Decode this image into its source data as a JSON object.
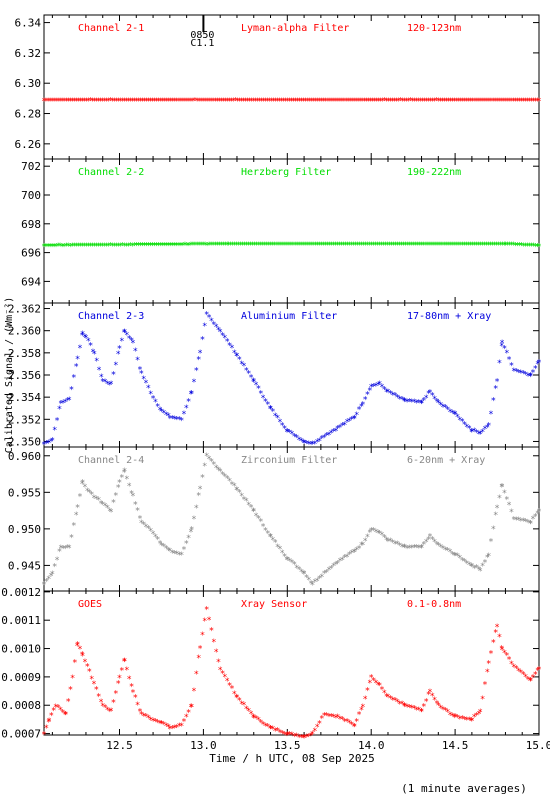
{
  "colors": {
    "red": "#ff0000",
    "green": "#00dd00",
    "blue": "#0000dd",
    "gray": "#888888",
    "axis": "#000000"
  },
  "figure": {
    "ylabel": "Calibrated Signal / (Wm⁻²)",
    "xlabel": "Time / h UTC, 08 Sep 2025",
    "footnote": "(1 minute averages)",
    "event_marker": {
      "time": 13.0,
      "label_top": "0850",
      "label_bottom": "C1.1"
    }
  },
  "chart_data": [
    {
      "type": "scatter",
      "channel": "Channel 2-1",
      "filter": "Lyman-alpha Filter",
      "band": "120-123nm",
      "color": "red",
      "xlim": [
        12.05,
        15.0
      ],
      "ylim": [
        6.25,
        6.345
      ],
      "yticks": [
        "6.26",
        "6.28",
        "6.30",
        "6.32",
        "6.34"
      ],
      "ytick_values": [
        6.26,
        6.28,
        6.3,
        6.32,
        6.34
      ],
      "series": [
        {
          "x": [
            12.05,
            15.0
          ],
          "y": [
            6.289,
            6.289
          ]
        }
      ]
    },
    {
      "type": "scatter",
      "channel": "Channel 2-2",
      "filter": "Herzberg Filter",
      "band": "190-222nm",
      "color": "green",
      "xlim": [
        12.05,
        15.0
      ],
      "ylim": [
        692.5,
        702.5
      ],
      "yticks": [
        "694",
        "696",
        "698",
        "700",
        "702"
      ],
      "ytick_values": [
        694,
        696,
        698,
        700,
        702
      ],
      "series": [
        {
          "x": [
            12.05,
            13.15,
            14.8,
            15.0
          ],
          "y": [
            696.5,
            696.6,
            696.6,
            696.5
          ]
        }
      ]
    },
    {
      "type": "scatter",
      "channel": "Channel 2-3",
      "filter": "Aluminium Filter",
      "band": "17-80nm + Xray",
      "color": "blue",
      "xlim": [
        12.05,
        15.0
      ],
      "ylim": [
        2.3495,
        2.3625
      ],
      "yticks": [
        "2.350",
        "2.352",
        "2.354",
        "2.356",
        "2.358",
        "2.360",
        "2.362"
      ],
      "ytick_values": [
        2.35,
        2.352,
        2.354,
        2.356,
        2.358,
        2.36,
        2.362
      ],
      "series": [
        {
          "x": [
            12.05,
            12.1,
            12.15,
            12.2,
            12.25,
            12.28,
            12.3,
            12.35,
            12.4,
            12.45,
            12.5,
            12.53,
            12.58,
            12.63,
            12.7,
            12.75,
            12.8,
            12.87,
            12.93,
            12.98,
            13.02,
            13.1,
            13.2,
            13.3,
            13.4,
            13.5,
            13.6,
            13.65,
            13.72,
            13.8,
            13.9,
            13.95,
            14.0,
            14.05,
            14.1,
            14.2,
            14.3,
            14.35,
            14.4,
            14.5,
            14.6,
            14.65,
            14.7,
            14.75,
            14.78,
            14.85,
            14.95,
            15.0
          ],
          "y": [
            2.3498,
            2.3502,
            2.3535,
            2.3538,
            2.3575,
            2.3598,
            2.3595,
            2.358,
            2.3555,
            2.3552,
            2.3585,
            2.36,
            2.359,
            2.3562,
            2.354,
            2.3528,
            2.3522,
            2.352,
            2.3545,
            2.358,
            2.3615,
            2.36,
            2.3578,
            2.3555,
            2.353,
            2.351,
            2.35,
            2.3498,
            2.3505,
            2.3512,
            2.3522,
            2.3535,
            2.355,
            2.3552,
            2.3545,
            2.3537,
            2.3535,
            2.3545,
            2.3535,
            2.3525,
            2.351,
            2.3508,
            2.3515,
            2.3555,
            2.359,
            2.3565,
            2.356,
            2.3572
          ]
        }
      ]
    },
    {
      "type": "scatter",
      "channel": "Channel 2-4",
      "filter": "Zirconium Filter",
      "band": "6-20nm + Xray",
      "color": "gray",
      "xlim": [
        12.05,
        15.0
      ],
      "ylim": [
        0.9415,
        0.9612
      ],
      "yticks": [
        "0.945",
        "0.950",
        "0.955",
        "0.960"
      ],
      "ytick_values": [
        0.945,
        0.95,
        0.955,
        0.96
      ],
      "series": [
        {
          "x": [
            12.05,
            12.1,
            12.15,
            12.2,
            12.25,
            12.28,
            12.32,
            12.4,
            12.45,
            12.5,
            12.53,
            12.58,
            12.63,
            12.7,
            12.75,
            12.8,
            12.87,
            12.93,
            12.98,
            13.02,
            13.1,
            13.2,
            13.3,
            13.4,
            13.5,
            13.6,
            13.65,
            13.72,
            13.8,
            13.9,
            13.95,
            14.0,
            14.05,
            14.1,
            14.2,
            14.3,
            14.35,
            14.4,
            14.5,
            14.6,
            14.65,
            14.7,
            14.75,
            14.78,
            14.85,
            14.95,
            15.0
          ],
          "y": [
            0.9425,
            0.944,
            0.9475,
            0.9475,
            0.953,
            0.9565,
            0.955,
            0.9535,
            0.9525,
            0.9565,
            0.958,
            0.9545,
            0.951,
            0.9495,
            0.948,
            0.947,
            0.9465,
            0.95,
            0.9555,
            0.96,
            0.958,
            0.9555,
            0.9525,
            0.949,
            0.946,
            0.944,
            0.9425,
            0.944,
            0.9455,
            0.947,
            0.948,
            0.95,
            0.9495,
            0.9485,
            0.9475,
            0.9475,
            0.949,
            0.9478,
            0.9465,
            0.945,
            0.9445,
            0.9465,
            0.953,
            0.956,
            0.9515,
            0.951,
            0.9525
          ]
        }
      ]
    },
    {
      "type": "scatter",
      "channel": "GOES",
      "filter": "Xray Sensor",
      "band": "0.1-0.8nm",
      "color": "red",
      "xlim": [
        12.05,
        15.0
      ],
      "ylim": [
        0.000695,
        0.001203
      ],
      "yticks": [
        "0.0007",
        "0.0008",
        "0.0009",
        "0.0010",
        "0.0011",
        "0.0012"
      ],
      "ytick_values": [
        0.0007,
        0.0008,
        0.0009,
        0.001,
        0.0011,
        0.0012
      ],
      "series": [
        {
          "x": [
            12.05,
            12.08,
            12.12,
            12.18,
            12.22,
            12.25,
            12.28,
            12.32,
            12.4,
            12.45,
            12.5,
            12.53,
            12.58,
            12.63,
            12.7,
            12.75,
            12.8,
            12.87,
            12.93,
            12.98,
            13.02,
            13.1,
            13.2,
            13.3,
            13.4,
            13.5,
            13.6,
            13.65,
            13.72,
            13.8,
            13.9,
            13.95,
            14.0,
            14.05,
            14.1,
            14.2,
            14.3,
            14.35,
            14.4,
            14.5,
            14.6,
            14.65,
            14.7,
            14.75,
            14.78,
            14.85,
            14.95,
            15.0
          ],
          "y": [
            0.0007,
            0.00075,
            0.0008,
            0.00077,
            0.0009,
            0.00102,
            0.00098,
            0.00092,
            0.0008,
            0.00078,
            0.0009,
            0.00096,
            0.00085,
            0.00077,
            0.00075,
            0.00074,
            0.00072,
            0.00073,
            0.0008,
            0.001,
            0.00114,
            0.00093,
            0.00083,
            0.00076,
            0.00072,
            0.0007,
            0.00069,
            0.0007,
            0.00077,
            0.00076,
            0.00073,
            0.0008,
            0.0009,
            0.00087,
            0.00083,
            0.0008,
            0.00078,
            0.00085,
            0.0008,
            0.00076,
            0.00075,
            0.00078,
            0.00095,
            0.00108,
            0.001,
            0.00094,
            0.00089,
            0.00093
          ]
        }
      ]
    }
  ]
}
